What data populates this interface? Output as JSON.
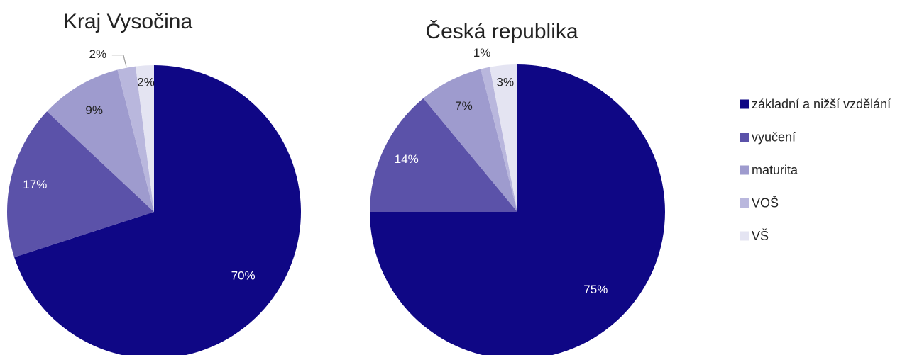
{
  "chart_data": [
    {
      "type": "pie",
      "title": "Kraj Vysočina",
      "categories": [
        "základní a nižší vzdělání",
        "vyučení",
        "maturita",
        "VOŠ",
        "VŠ"
      ],
      "values": [
        70,
        17,
        9,
        2,
        2
      ],
      "value_labels": [
        "70%",
        "17%",
        "9%",
        "2%",
        "2%"
      ],
      "colors": [
        "#0f0785",
        "#5b52a9",
        "#9e9bce",
        "#b9b7dd",
        "#e4e4f2"
      ]
    },
    {
      "type": "pie",
      "title": "Česká republika",
      "categories": [
        "základní a nižší vzdělání",
        "vyučení",
        "maturita",
        "VOŠ",
        "VŠ"
      ],
      "values": [
        75,
        14,
        7,
        1,
        3
      ],
      "value_labels": [
        "75%",
        "14%",
        "7%",
        "1%",
        "3%"
      ],
      "colors": [
        "#0f0785",
        "#5b52a9",
        "#9e9bce",
        "#b9b7dd",
        "#e4e4f2"
      ]
    }
  ]
}
